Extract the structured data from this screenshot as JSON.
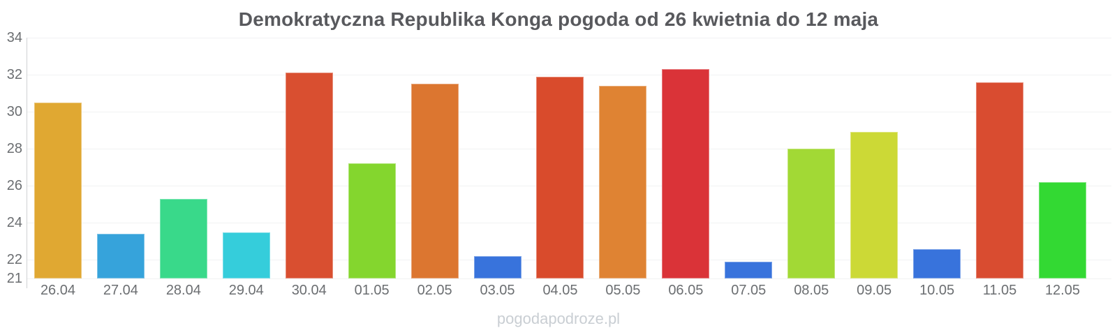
{
  "chart_data": {
    "type": "bar",
    "title": "Demokratyczna Republika Konga pogoda od 26 kwietnia do 12 maja",
    "categories": [
      "26.04",
      "27.04",
      "28.04",
      "29.04",
      "30.04",
      "01.05",
      "02.05",
      "03.05",
      "04.05",
      "05.05",
      "06.05",
      "07.05",
      "08.05",
      "09.05",
      "10.05",
      "11.05",
      "12.05"
    ],
    "values": [
      30.5,
      23.4,
      25.3,
      23.5,
      32.1,
      27.2,
      31.5,
      22.2,
      31.9,
      31.4,
      32.3,
      21.9,
      28.0,
      28.9,
      22.6,
      31.6,
      26.2
    ],
    "bar_colors": [
      "#e0a832",
      "#36a3db",
      "#39d98a",
      "#35cddb",
      "#d94f30",
      "#84d62e",
      "#dc7630",
      "#3873dc",
      "#d94b2c",
      "#df8333",
      "#da3338",
      "#3873dc",
      "#a2d935",
      "#ccd936",
      "#3873dc",
      "#d94c30",
      "#33d933"
    ],
    "xlabel": "",
    "ylabel": "",
    "ylim": [
      21,
      34
    ],
    "yticks": [
      21,
      22,
      24,
      26,
      28,
      30,
      32,
      34
    ],
    "grid": true,
    "legend": false
  },
  "watermark": "pogodapodroze.pl",
  "colors": {
    "title": "#58595d",
    "axis_labels": "#6b6e71",
    "gridline": "#f1f2f3",
    "axis_line": "#cfd1d3",
    "watermark": "#c9ced3",
    "background": "#ffffff"
  }
}
